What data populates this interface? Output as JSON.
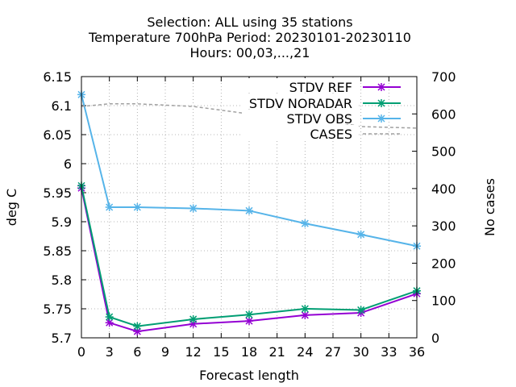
{
  "chart_data": {
    "type": "line",
    "title": [
      "Selection: ALL using    35 stations",
      "Temperature 700hPa   Period: 20230101-20230110",
      "Hours:  00,03,...,21"
    ],
    "xlabel": "Forecast length",
    "ylabel": "deg C",
    "y2label": "No cases",
    "xlim": [
      0,
      36
    ],
    "ylim": [
      5.7,
      6.15
    ],
    "y2lim": [
      0,
      700
    ],
    "x_ticks": [
      "0",
      "3",
      "6",
      "9",
      "12",
      "15",
      "18",
      "21",
      "24",
      "27",
      "30",
      "33",
      "36"
    ],
    "y_ticks": [
      "5.7",
      "5.75",
      "5.8",
      "5.85",
      "5.9",
      "5.95",
      "6",
      "6.05",
      "6.1",
      "6.15"
    ],
    "y2_ticks": [
      "0",
      "100",
      "200",
      "300",
      "400",
      "500",
      "600",
      "700"
    ],
    "grid": true,
    "legend_position": "top-right",
    "x": [
      0,
      3,
      6,
      12,
      18,
      24,
      30,
      36
    ],
    "series": [
      {
        "name": "STDV REF",
        "axis": "y",
        "color": "#9400d3",
        "marker": "x",
        "values": [
          5.958,
          5.726,
          5.711,
          5.724,
          5.729,
          5.739,
          5.743,
          5.776
        ]
      },
      {
        "name": "STDV NORADAR",
        "axis": "y",
        "color": "#009e73",
        "marker": "x",
        "values": [
          5.962,
          5.736,
          5.72,
          5.732,
          5.74,
          5.75,
          5.748,
          5.781
        ]
      },
      {
        "name": "STDV OBS",
        "axis": "y",
        "color": "#56b4e9",
        "marker": "x",
        "values": [
          6.119,
          5.925,
          5.925,
          5.923,
          5.919,
          5.897,
          5.878,
          5.858
        ]
      },
      {
        "name": "CASES",
        "axis": "y2",
        "color": "#a0a0a0",
        "dashed": true,
        "values": [
          620,
          627,
          627,
          620,
          600,
          594,
          566,
          562
        ]
      }
    ]
  }
}
